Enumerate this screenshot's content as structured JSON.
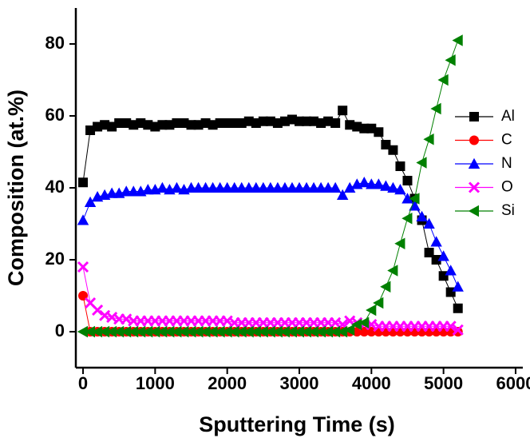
{
  "chart_data": {
    "type": "line",
    "x_label": "Sputtering Time (s)",
    "y_label": "Composition (at.%)",
    "xlim": [
      -100,
      6100
    ],
    "xticks": [
      0,
      1000,
      2000,
      3000,
      4000,
      5000,
      6000
    ],
    "ylim": [
      -10,
      90
    ],
    "yticks": [
      0,
      20,
      40,
      60,
      80
    ],
    "grid": false,
    "legend": "right",
    "x": [
      0,
      100,
      200,
      300,
      400,
      500,
      600,
      700,
      800,
      900,
      1000,
      1100,
      1200,
      1300,
      1400,
      1500,
      1600,
      1700,
      1800,
      1900,
      2000,
      2100,
      2200,
      2300,
      2400,
      2500,
      2600,
      2700,
      2800,
      2900,
      3000,
      3100,
      3200,
      3300,
      3400,
      3500,
      3600,
      3700,
      3800,
      3900,
      4000,
      4100,
      4200,
      4300,
      4400,
      4500,
      4600,
      4700,
      4800,
      4900,
      5000,
      5100,
      5200
    ],
    "series": [
      {
        "name": "Al",
        "color": "#000000",
        "marker": "square",
        "values": [
          41.5,
          56,
          57,
          57.5,
          57,
          58,
          58,
          57.5,
          58,
          57.5,
          57,
          57.5,
          57.5,
          58,
          58,
          57.5,
          57.5,
          58,
          57.5,
          58,
          58,
          58,
          58,
          58.5,
          58,
          58.5,
          58.5,
          58,
          58.5,
          59,
          58.5,
          58.5,
          58.5,
          58,
          58.5,
          58,
          61.5,
          57.5,
          57,
          56.5,
          56.5,
          55.5,
          52,
          50.5,
          46,
          42,
          37,
          31,
          22,
          20,
          15.5,
          11,
          6.5
        ]
      },
      {
        "name": "C",
        "color": "#ff0000",
        "marker": "circle",
        "values": [
          10,
          0,
          0,
          0,
          0,
          0,
          0,
          0,
          0,
          0,
          0,
          0,
          0,
          0,
          0,
          0,
          0,
          0,
          0,
          0,
          0,
          0,
          0,
          0,
          0,
          0,
          0,
          0,
          0,
          0,
          0,
          0,
          0,
          0,
          0,
          0,
          0,
          0,
          0,
          0,
          0,
          0,
          0,
          0,
          0,
          0,
          0,
          0,
          0,
          0,
          0,
          0,
          0
        ]
      },
      {
        "name": "N",
        "color": "#0000ff",
        "marker": "triangle-up",
        "values": [
          31,
          36,
          37.5,
          38,
          38.5,
          38.5,
          39,
          39,
          39,
          39.5,
          39.5,
          40,
          39.5,
          40,
          39.5,
          40,
          40,
          40,
          40,
          40,
          40,
          40,
          40,
          40,
          40,
          40,
          40,
          40,
          40,
          40,
          40,
          40,
          40,
          40,
          40,
          40,
          38,
          40,
          41,
          41.5,
          41,
          41,
          40.5,
          40,
          39.5,
          37,
          35,
          32,
          30,
          25,
          21,
          17,
          12.5
        ]
      },
      {
        "name": "O",
        "color": "#ff00ff",
        "marker": "x",
        "values": [
          18,
          8,
          6,
          4.5,
          4,
          3.5,
          3.5,
          3,
          3,
          3,
          3,
          3,
          3,
          3,
          3,
          3,
          3,
          3,
          3,
          3,
          3,
          2.5,
          2.5,
          2.5,
          2.5,
          2.5,
          2.5,
          2.5,
          2.5,
          2.5,
          2.5,
          2.5,
          2.5,
          2.5,
          2.5,
          2.5,
          2,
          3,
          2.5,
          2,
          2,
          1.5,
          1.5,
          1.5,
          1.5,
          1.5,
          1.5,
          1.5,
          1.5,
          1.5,
          1.5,
          1.5,
          0.5
        ]
      },
      {
        "name": "Si",
        "color": "#008000",
        "marker": "triangle-left",
        "values": [
          0,
          0,
          0,
          0,
          0,
          0,
          0,
          0,
          0,
          0,
          0,
          0,
          0,
          0,
          0,
          0,
          0,
          0,
          0,
          0,
          0,
          0,
          0,
          0,
          0,
          0,
          0,
          0,
          0,
          0,
          0,
          0,
          0,
          0,
          0,
          0,
          0,
          0.5,
          2,
          2.5,
          6,
          8,
          12.5,
          17,
          24.5,
          31.5,
          37,
          47,
          53.5,
          62,
          70,
          75.5,
          81
        ]
      }
    ]
  }
}
